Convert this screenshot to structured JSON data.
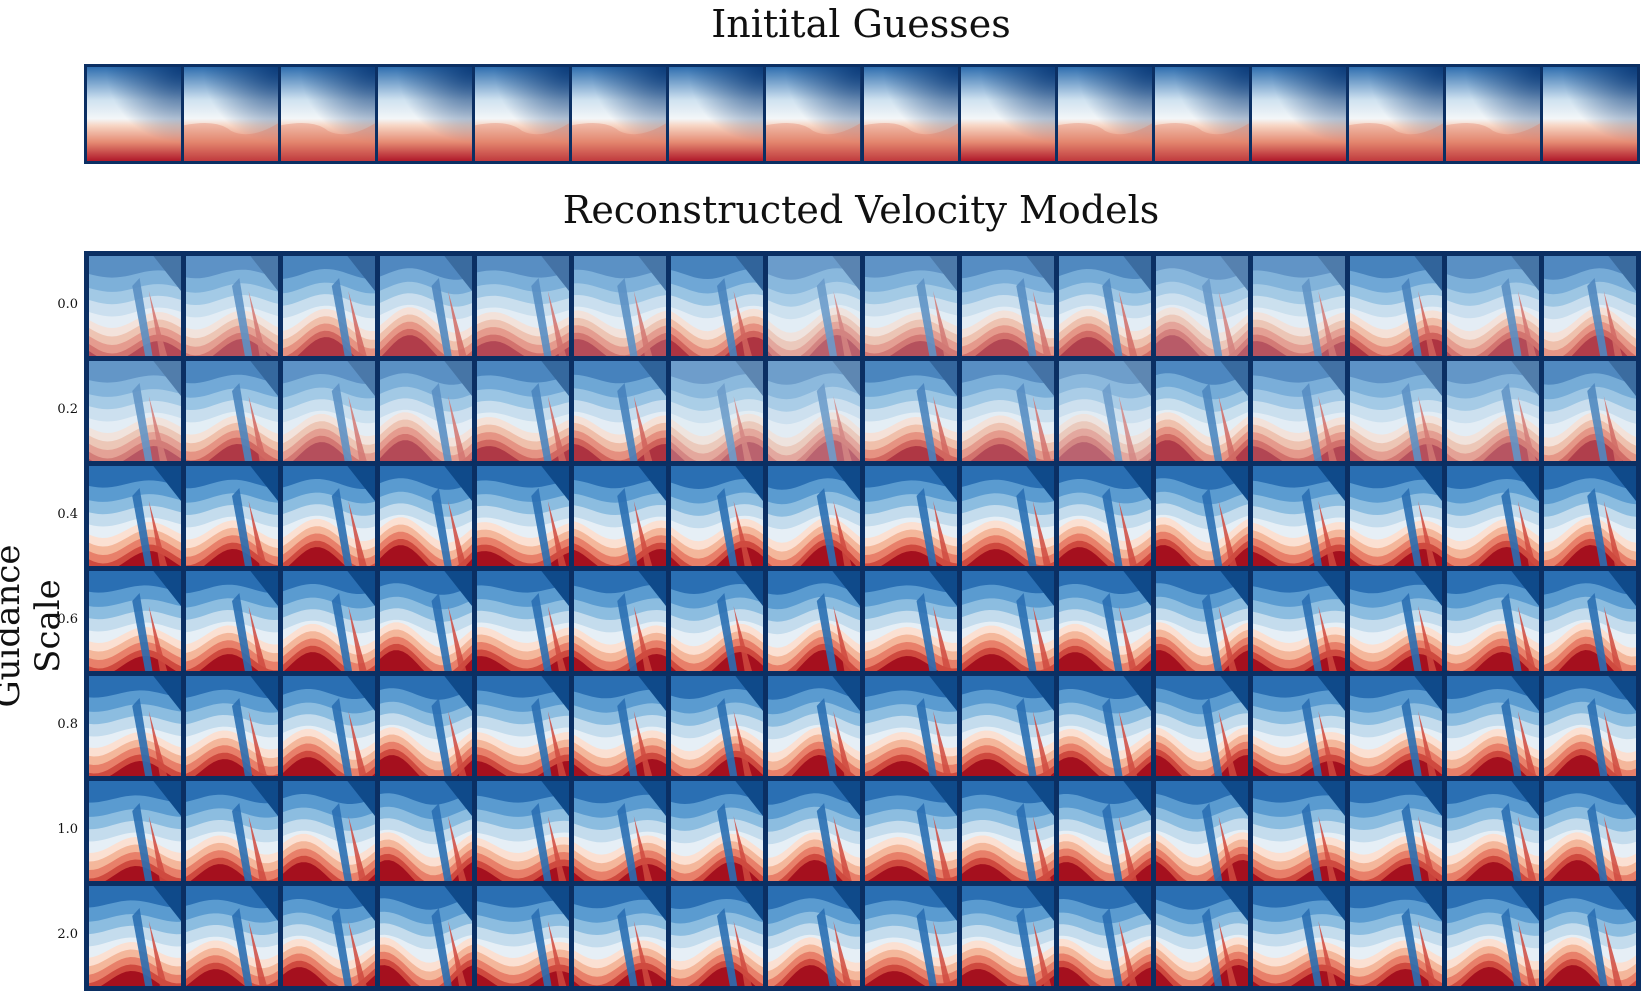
{
  "figure": {
    "initial_title": "Initital Guesses",
    "reconstructed_title": "Reconstructed Velocity Models",
    "y_axis_label": "Guidance Scale"
  },
  "colormap": {
    "low": "#0b3a78",
    "mid": "#f2f6f8",
    "high": "#a5101e",
    "frame": "#0b2f63"
  },
  "initial_guesses": {
    "count": 16
  },
  "guidance_scales": [
    "0.0",
    "0.2",
    "0.4",
    "0.6",
    "0.8",
    "1.0",
    "2.0"
  ],
  "columns": 16
}
